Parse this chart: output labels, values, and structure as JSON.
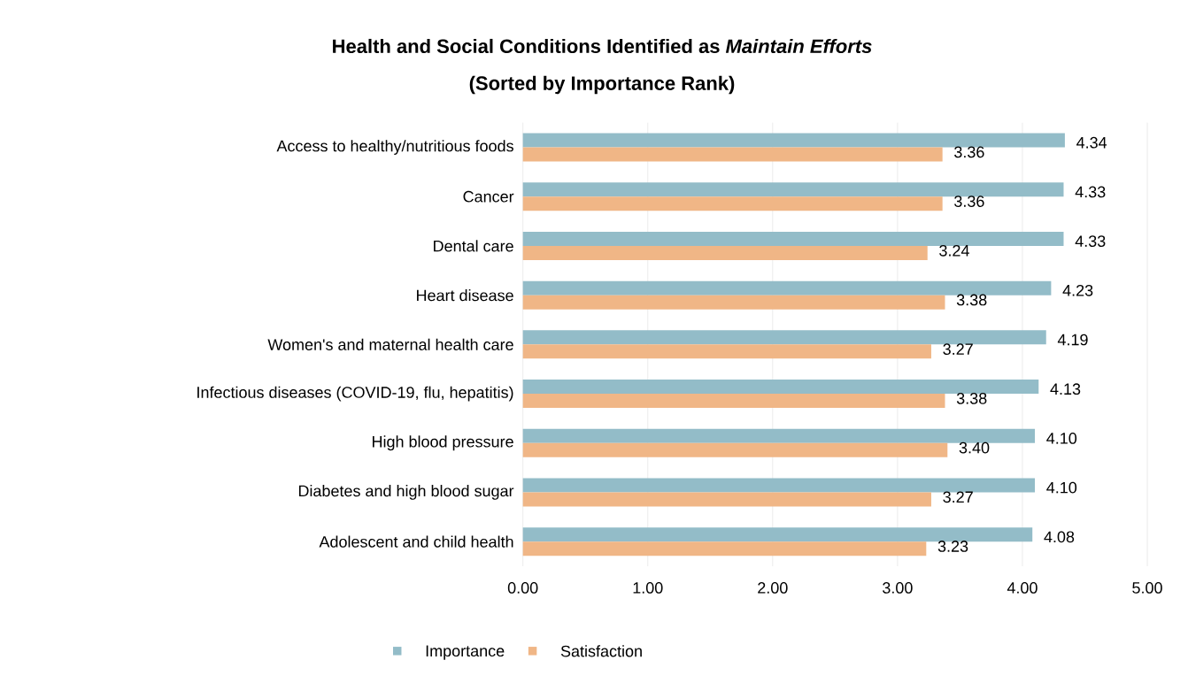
{
  "chart_data": {
    "type": "bar",
    "orientation": "horizontal",
    "title": "Health and Social Conditions Identified as *Maintain Efforts*",
    "subtitle": "(Sorted by Importance Rank)",
    "categories": [
      "Access to healthy/nutritious foods",
      "Cancer",
      "Dental care",
      "Heart disease",
      "Women's and maternal health care",
      "Infectious diseases (COVID-19, flu, hepatitis)",
      "High blood pressure",
      "Diabetes and high blood sugar",
      "Adolescent and child health"
    ],
    "series": [
      {
        "name": "Importance",
        "color": "#93bcc8",
        "values": [
          4.34,
          4.33,
          4.33,
          4.23,
          4.19,
          4.13,
          4.1,
          4.1,
          4.08
        ],
        "value_labels": [
          "4.34",
          "4.33",
          "4.33",
          "4.23",
          "4.19",
          "4.13",
          "4.10",
          "4.10",
          "4.08"
        ]
      },
      {
        "name": "Satisfaction",
        "color": "#f0b686",
        "values": [
          3.36,
          3.36,
          3.24,
          3.38,
          3.27,
          3.38,
          3.4,
          3.27,
          3.23
        ],
        "value_labels": [
          "3.36",
          "3.36",
          "3.24",
          "3.38",
          "3.27",
          "3.38",
          "3.40",
          "3.27",
          "3.23"
        ]
      }
    ],
    "xlim": [
      0,
      5
    ],
    "xticks": [
      {
        "value": 0,
        "label": "0.00"
      },
      {
        "value": 1,
        "label": "1.00"
      },
      {
        "value": 2,
        "label": "2.00"
      },
      {
        "value": 3,
        "label": "3.00"
      },
      {
        "value": 4,
        "label": "4.00"
      },
      {
        "value": 5,
        "label": "5.00"
      }
    ],
    "grid": "x",
    "legend": "bottom"
  }
}
